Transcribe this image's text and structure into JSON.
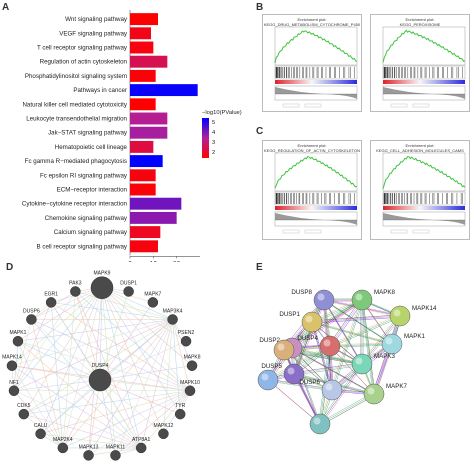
{
  "panels": {
    "A": {
      "letter": "A",
      "chart_data": {
        "type": "bar",
        "orientation": "horizontal",
        "categories": [
          "Wnt signaling pathway",
          "VEGF signaling pathway",
          "T cell receptor signaling pathway",
          "Regulation of actin cytoskeleton",
          "Phosphatidylinositol signaling system",
          "Pathways in cancer",
          "Natural killer cell mediated cytotoxicity",
          "Leukocyte transendothelial migration",
          "Jak−STAT signaling pathway",
          "Hematopoietic cell lineage",
          "Fc gamma R−mediated phagocytosis",
          "Fc epsilon RI signaling pathway",
          "ECM−receptor interaction",
          "Cytokine−cytokine receptor interaction",
          "Chemokine signaling pathway",
          "Calcium signaling pathway",
          "B cell receptor signaling pathway"
        ],
        "values": [
          12,
          9,
          10,
          16,
          11,
          29,
          11,
          16,
          16,
          10,
          14,
          11,
          11,
          22,
          20,
          13,
          12
        ],
        "color_values": [
          1.2,
          1.5,
          1.4,
          2.2,
          1.3,
          4.9,
          1.2,
          3.0,
          3.2,
          2.0,
          5.0,
          1.4,
          1.3,
          3.8,
          3.5,
          1.6,
          1.4
        ],
        "x_ticks": [
          "0",
          "10",
          "20"
        ],
        "xlim": [
          0,
          30
        ],
        "legend_title": "−log10(PValue)",
        "legend_ticks": [
          "5",
          "4",
          "3",
          "2"
        ],
        "color_scale": {
          "low": "#ff0000",
          "mid": "#b0209a",
          "high": "#0000ff"
        }
      }
    },
    "B": {
      "letter": "B",
      "plots": [
        {
          "title": "Enrichment plot:\nKEGG_DRUG_METABOLISM_CYTOCHROME_P450"
        },
        {
          "title": "Enrichment plot:\nKEGG_PEROXISOME"
        }
      ]
    },
    "C": {
      "letter": "C",
      "plots": [
        {
          "title": "Enrichment plot:\nKEGG_REGULATION_OF_ACTIN_CYTOSKELETON"
        },
        {
          "title": "Enrichment plot:\nKEGG_CELL_ADHESION_MOLECULES_CAMS"
        }
      ]
    },
    "D": {
      "letter": "D",
      "nodes": [
        {
          "label": "MAPK9",
          "size": "large"
        },
        {
          "label": "DUSP1"
        },
        {
          "label": "MAPK7"
        },
        {
          "label": "MAP3K4"
        },
        {
          "label": "PSEN2"
        },
        {
          "label": "MAPK8"
        },
        {
          "label": "MAPK10"
        },
        {
          "label": "TYR"
        },
        {
          "label": "MAPK12"
        },
        {
          "label": "ATP8A1"
        },
        {
          "label": "MAPK11"
        },
        {
          "label": "MAPK13"
        },
        {
          "label": "MAP2K4"
        },
        {
          "label": "CALU"
        },
        {
          "label": "CDK5"
        },
        {
          "label": "NF1"
        },
        {
          "label": "MAPK14"
        },
        {
          "label": "MAPK1"
        },
        {
          "label": "DUSP6"
        },
        {
          "label": "EGR1"
        },
        {
          "label": "PAK3"
        },
        {
          "label": "DUSP4",
          "size": "large"
        }
      ]
    },
    "E": {
      "letter": "E",
      "nodes": [
        {
          "label": "DUSP8",
          "color": "#8f8fd6"
        },
        {
          "label": "MAPK8",
          "color": "#7ec87a"
        },
        {
          "label": "DUSP1",
          "color": "#d9c26a"
        },
        {
          "label": "MAPK14",
          "color": "#b7d36b"
        },
        {
          "label": "DUSP2",
          "color": "#c98fc2"
        },
        {
          "label": "DUSP4",
          "color": "#d76e6e"
        },
        {
          "label": "MAPK1",
          "color": "#9fd8e0"
        },
        {
          "label": "DUSP5",
          "color": "#8a6fc9"
        },
        {
          "label": "MAPK3",
          "color": "#7ad6b8"
        },
        {
          "label": "DUSP6",
          "color": "#b8c7e6"
        },
        {
          "label": "MAPK7",
          "color": "#a9d18e"
        },
        {
          "label": "",
          "color": "#d9b07a"
        },
        {
          "label": "",
          "color": "#8fb6e6"
        },
        {
          "label": "",
          "color": "#7fc0c0"
        }
      ]
    }
  }
}
